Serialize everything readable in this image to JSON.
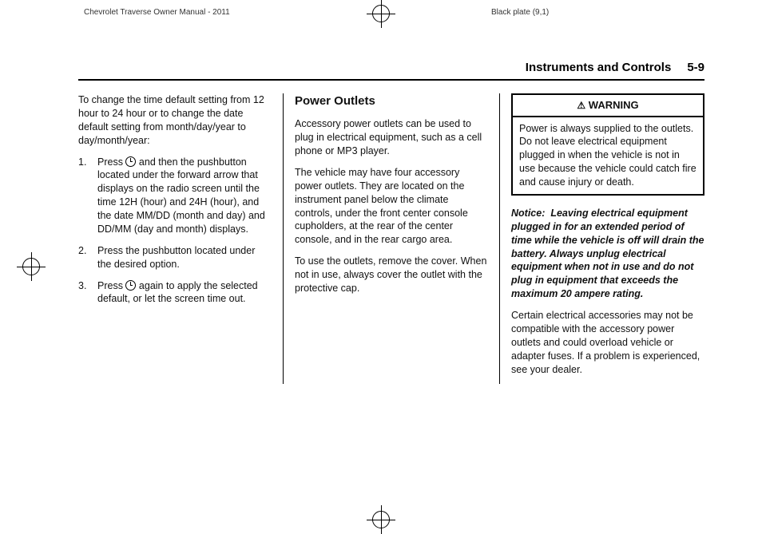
{
  "print": {
    "left_header": "Chevrolet Traverse Owner Manual - 2011",
    "right_header": "Black plate (9,1)"
  },
  "header": {
    "section": "Instruments and Controls",
    "page": "5-9"
  },
  "col1": {
    "intro": "To change the time default setting from 12 hour to 24 hour or to change the date default setting from month/day/year to day/month/year:",
    "steps": {
      "n1": "1.",
      "s1a": "Press ",
      "s1b": " and then the pushbutton located under the forward arrow that displays on the radio screen until the time 12H (hour) and 24H (hour), and the date MM/DD (month and day) and DD/MM (day and month) displays.",
      "n2": "2.",
      "s2": "Press the pushbutton located under the desired option.",
      "n3": "3.",
      "s3a": "Press ",
      "s3b": " again to apply the selected default, or let the screen time out."
    }
  },
  "col2": {
    "heading": "Power Outlets",
    "p1": "Accessory power outlets can be used to plug in electrical equipment, such as a cell phone or MP3 player.",
    "p2": "The vehicle may have four accessory power outlets. They are located on the instrument panel below the climate controls, under the front center console cupholders, at the rear of the center console, and in the rear cargo area.",
    "p3": "To use the outlets, remove the cover. When not in use, always cover the outlet with the protective cap."
  },
  "col3": {
    "warning_title": "WARNING",
    "warning_body": "Power is always supplied to the outlets. Do not leave electrical equipment plugged in when the vehicle is not in use because the vehicle could catch fire and cause injury or death.",
    "notice_label": "Notice:",
    "notice_body": "Leaving electrical equipment plugged in for an extended period of time while the vehicle is off will drain the battery. Always unplug electrical equipment when not in use and do not plug in equipment that exceeds the maximum 20 ampere rating.",
    "p_after": "Certain electrical accessories may not be compatible with the accessory power outlets and could overload vehicle or adapter fuses. If a problem is experienced, see your dealer."
  },
  "colors": {
    "text": "#000000",
    "border": "#000000",
    "background": "#ffffff"
  },
  "typography": {
    "body_fontsize": 12.5,
    "heading_fontsize": 15,
    "header_fontsize": 15,
    "print_header_fontsize": 10
  }
}
